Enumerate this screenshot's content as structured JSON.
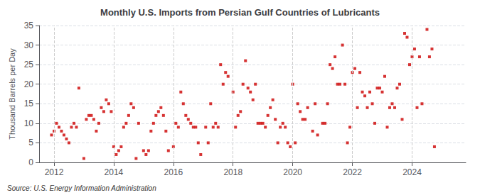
{
  "chart_data": {
    "type": "scatter",
    "title": "Monthly U.S. Imports from Persian Gulf Countries of Lubricants",
    "ylabel": "Thousand Barrels per Day",
    "source": "Source: U.S. Energy Information Administration",
    "color": "#cc0000",
    "marker": "square",
    "grid": true,
    "xlim": [
      2011.5,
      2025.8
    ],
    "xticks": [
      2012,
      2014,
      2016,
      2018,
      2020,
      2022,
      2024
    ],
    "ylim": [
      0,
      35
    ],
    "yticks": [
      0,
      5,
      10,
      15,
      20,
      25,
      30,
      35
    ],
    "x": [
      2011.917,
      2012.0,
      2012.083,
      2012.167,
      2012.25,
      2012.333,
      2012.417,
      2012.5,
      2012.583,
      2012.667,
      2012.75,
      2012.833,
      2013.0,
      2013.083,
      2013.167,
      2013.25,
      2013.333,
      2013.417,
      2013.5,
      2013.583,
      2013.667,
      2013.75,
      2013.833,
      2013.917,
      2014.0,
      2014.083,
      2014.167,
      2014.25,
      2014.333,
      2014.417,
      2014.5,
      2014.583,
      2014.667,
      2014.75,
      2014.833,
      2015.0,
      2015.083,
      2015.167,
      2015.25,
      2015.333,
      2015.417,
      2015.5,
      2015.583,
      2015.667,
      2015.75,
      2015.833,
      2016.0,
      2016.083,
      2016.167,
      2016.25,
      2016.333,
      2016.417,
      2016.5,
      2016.583,
      2016.667,
      2016.75,
      2016.833,
      2016.917,
      2017.083,
      2017.167,
      2017.25,
      2017.333,
      2017.417,
      2017.5,
      2017.583,
      2017.667,
      2017.75,
      2017.833,
      2018.0,
      2018.083,
      2018.167,
      2018.25,
      2018.333,
      2018.417,
      2018.5,
      2018.583,
      2018.667,
      2018.75,
      2018.833,
      2018.917,
      2019.0,
      2019.083,
      2019.167,
      2019.25,
      2019.333,
      2019.417,
      2019.5,
      2019.583,
      2019.667,
      2019.75,
      2019.833,
      2019.917,
      2020.0,
      2020.083,
      2020.167,
      2020.25,
      2020.333,
      2020.417,
      2020.5,
      2020.667,
      2020.75,
      2020.833,
      2021.0,
      2021.083,
      2021.167,
      2021.25,
      2021.333,
      2021.417,
      2021.5,
      2021.583,
      2021.667,
      2021.75,
      2021.833,
      2021.917,
      2022.0,
      2022.083,
      2022.167,
      2022.25,
      2022.333,
      2022.417,
      2022.5,
      2022.583,
      2022.667,
      2022.75,
      2022.833,
      2022.917,
      2023.0,
      2023.083,
      2023.167,
      2023.25,
      2023.333,
      2023.417,
      2023.5,
      2023.583,
      2023.667,
      2023.75,
      2023.833,
      2023.917,
      2024.0,
      2024.083,
      2024.167,
      2024.25,
      2024.333,
      2024.5,
      2024.583,
      2024.667,
      2024.75
    ],
    "values": [
      7,
      8,
      10,
      9,
      8,
      7,
      6,
      5,
      9,
      10,
      9,
      19,
      1,
      11,
      12,
      12,
      11,
      8,
      10,
      14,
      13,
      16,
      15,
      13,
      4,
      2,
      3,
      4,
      9,
      10,
      12,
      15,
      14,
      1,
      10,
      3,
      2,
      3,
      8,
      10,
      12,
      13,
      14,
      12,
      8,
      3,
      4,
      10,
      9,
      18,
      15,
      12,
      11,
      10,
      9,
      9,
      5,
      2,
      9,
      5,
      15,
      9,
      10,
      9,
      25,
      20,
      23,
      22,
      18,
      9,
      12,
      13,
      20,
      26,
      19,
      18,
      16,
      20,
      10,
      10,
      10,
      9,
      12,
      14,
      16,
      11,
      5,
      9,
      10,
      9,
      5,
      4,
      20,
      5,
      15,
      13,
      11,
      11,
      14,
      8,
      15,
      7,
      10,
      10,
      15,
      25,
      24,
      27,
      20,
      20,
      30,
      20,
      5,
      9,
      23,
      24,
      14,
      23,
      18,
      17,
      14,
      18,
      15,
      10,
      19,
      19,
      18,
      22,
      9,
      14,
      15,
      14,
      19,
      20,
      11,
      33,
      32,
      25,
      27,
      29,
      14,
      27,
      15,
      34,
      27,
      29,
      4
    ]
  }
}
